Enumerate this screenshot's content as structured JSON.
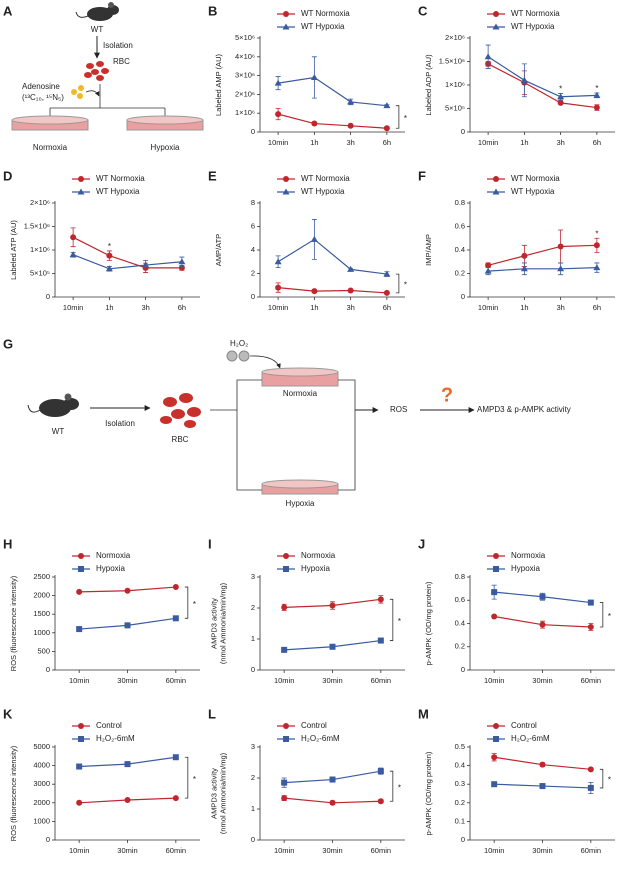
{
  "diagram_a": {
    "panel": "A",
    "mouse": "WT",
    "step": "Isolation",
    "cells": "RBC",
    "tracer": "Adenosine",
    "isotopes": "(¹³C₁₀, ¹⁵N₅)",
    "left": "Normoxia",
    "right": "Hypoxia"
  },
  "diagram_g": {
    "panel": "G",
    "reagent": "H₂O₂",
    "top": "Normoxia",
    "bottom": "Hypoxia",
    "mouse": "WT",
    "step": "Isolation",
    "cells": "RBC",
    "product": "ROS",
    "question": "?",
    "target": "AMPD3 & p-AMPK activity"
  },
  "chart_data": [
    {
      "type": "line",
      "panel": "B",
      "ylabel": "Labeled AMP (AU)",
      "categories": [
        "10min",
        "1h",
        "3h",
        "6h"
      ],
      "ylim": [
        0,
        5000000
      ],
      "yticks": [
        0,
        {
          "value": 1000000,
          "label": "1×10⁶"
        },
        {
          "value": 2000000,
          "label": "2×10⁶"
        },
        {
          "value": 3000000,
          "label": "3×10⁶"
        },
        {
          "value": 4000000,
          "label": "4×10⁶"
        },
        {
          "value": 5000000,
          "label": "5×10⁶"
        }
      ],
      "series": [
        {
          "name": "WT Normoxia",
          "color": "#c0262d",
          "marker": "circle",
          "values": [
            950000,
            450000,
            330000,
            200000
          ],
          "errors": [
            300000,
            50000,
            50000,
            50000
          ]
        },
        {
          "name": "WT Hypoxia",
          "color": "#3a5ba0",
          "marker": "triangle",
          "values": [
            2600000,
            2900000,
            1600000,
            1400000
          ],
          "errors": [
            350000,
            1100000,
            150000,
            50000
          ]
        }
      ],
      "annotations": [
        {
          "text": "*",
          "bracket": true
        }
      ]
    },
    {
      "type": "line",
      "panel": "C",
      "ylabel": "Labeled ADP (AU)",
      "categories": [
        "10min",
        "1h",
        "3h",
        "6h"
      ],
      "ylim": [
        0,
        2000000
      ],
      "yticks": [
        0,
        {
          "value": 500000,
          "label": "5×10⁵"
        },
        {
          "value": 1000000,
          "label": "1×10⁶"
        },
        {
          "value": 1500000,
          "label": "1.5×10⁶"
        },
        {
          "value": 2000000,
          "label": "2×10⁶"
        }
      ],
      "series": [
        {
          "name": "WT Normoxia",
          "color": "#c0262d",
          "marker": "circle",
          "values": [
            1450000,
            1050000,
            620000,
            520000
          ],
          "errors": [
            50000,
            250000,
            20000,
            60000
          ]
        },
        {
          "name": "WT Hypoxia",
          "color": "#3a5ba0",
          "marker": "triangle",
          "values": [
            1600000,
            1100000,
            750000,
            780000
          ],
          "errors": [
            250000,
            350000,
            70000,
            50000
          ]
        }
      ],
      "annotations": [
        {
          "text": "*",
          "x": "3h"
        },
        {
          "text": "*",
          "x": "6h"
        }
      ]
    },
    {
      "type": "line",
      "panel": "D",
      "ylabel": "Labeled ATP (AU)",
      "categories": [
        "10min",
        "1h",
        "3h",
        "6h"
      ],
      "ylim": [
        0,
        2000000
      ],
      "yticks": [
        0,
        {
          "value": 500000,
          "label": "5×10⁵"
        },
        {
          "value": 1000000,
          "label": "1×10⁶"
        },
        {
          "value": 1500000,
          "label": "1.5×10⁶"
        },
        {
          "value": 2000000,
          "label": "2×10⁶"
        }
      ],
      "series": [
        {
          "name": "WT Normoxia",
          "color": "#c0262d",
          "marker": "circle",
          "values": [
            1270000,
            880000,
            620000,
            620000
          ],
          "errors": [
            200000,
            100000,
            100000,
            50000
          ]
        },
        {
          "name": "WT Hypoxia",
          "color": "#3a5ba0",
          "marker": "triangle",
          "values": [
            900000,
            600000,
            680000,
            750000
          ],
          "errors": [
            50000,
            50000,
            100000,
            100000
          ]
        }
      ],
      "annotations": [
        {
          "text": "*",
          "x": "1h"
        }
      ]
    },
    {
      "type": "line",
      "panel": "E",
      "ylabel": "AMP/ATP",
      "categories": [
        "10min",
        "1h",
        "3h",
        "6h"
      ],
      "ylim": [
        0,
        8
      ],
      "yticks": [
        0,
        2,
        4,
        6,
        8
      ],
      "series": [
        {
          "name": "WT Normoxia",
          "color": "#c0262d",
          "marker": "circle",
          "values": [
            0.8,
            0.5,
            0.55,
            0.35
          ],
          "errors": [
            0.4,
            0.1,
            0.1,
            0.05
          ]
        },
        {
          "name": "WT Hypoxia",
          "color": "#3a5ba0",
          "marker": "triangle",
          "values": [
            3.0,
            4.9,
            2.35,
            1.95
          ],
          "errors": [
            0.5,
            1.7,
            0.1,
            0.2
          ]
        }
      ],
      "annotations": [
        {
          "text": "*",
          "bracket": true
        }
      ]
    },
    {
      "type": "line",
      "panel": "F",
      "ylabel": "IMP/AMP",
      "categories": [
        "10min",
        "1h",
        "3h",
        "6h"
      ],
      "ylim": [
        0,
        0.8
      ],
      "yticks": [
        0,
        0.2,
        0.4,
        0.6,
        0.8
      ],
      "series": [
        {
          "name": "WT Normoxia",
          "color": "#c0262d",
          "marker": "circle",
          "values": [
            0.27,
            0.35,
            0.43,
            0.44
          ],
          "errors": [
            0.02,
            0.09,
            0.14,
            0.06
          ]
        },
        {
          "name": "WT Hypoxia",
          "color": "#3a5ba0",
          "marker": "triangle",
          "values": [
            0.22,
            0.24,
            0.24,
            0.25
          ],
          "errors": [
            0.03,
            0.05,
            0.05,
            0.04
          ]
        }
      ],
      "annotations": [
        {
          "text": "*",
          "x": "6h"
        }
      ]
    },
    {
      "type": "line",
      "panel": "H",
      "ylabel": "ROS (fluorescence intensity)",
      "categories": [
        "10min",
        "30min",
        "60min"
      ],
      "ylim": [
        0,
        2500
      ],
      "yticks": [
        0,
        500,
        1000,
        1500,
        2000,
        2500
      ],
      "series": [
        {
          "name": "Normoxia",
          "color": "#c0262d",
          "marker": "circle",
          "values": [
            2100,
            2130,
            2230
          ],
          "errors": [
            20,
            20,
            20
          ]
        },
        {
          "name": "Hypoxia",
          "color": "#3a5ba0",
          "marker": "square",
          "values": [
            1100,
            1200,
            1390
          ],
          "errors": [
            20,
            20,
            20
          ]
        }
      ],
      "annotations": [
        {
          "text": "*",
          "bracket": true
        }
      ]
    },
    {
      "type": "line",
      "panel": "I",
      "ylabel": [
        "AMPD3 activity",
        "(nmol Ammonia/min/mg)"
      ],
      "categories": [
        "10min",
        "30min",
        "60min"
      ],
      "ylim": [
        0,
        3
      ],
      "yticks": [
        0,
        1,
        2,
        3
      ],
      "series": [
        {
          "name": "Normoxia",
          "color": "#c0262d",
          "marker": "circle",
          "values": [
            2.02,
            2.08,
            2.28
          ],
          "errors": [
            0.1,
            0.12,
            0.12
          ]
        },
        {
          "name": "Hypoxia",
          "color": "#3a5ba0",
          "marker": "square",
          "values": [
            0.65,
            0.75,
            0.95
          ],
          "errors": [
            0.03,
            0.03,
            0.03
          ]
        }
      ],
      "annotations": [
        {
          "text": "*",
          "bracket": true
        }
      ]
    },
    {
      "type": "line",
      "panel": "J",
      "ylabel": "p-AMPK (OD/mg protein)",
      "categories": [
        "10min",
        "30min",
        "60min"
      ],
      "ylim": [
        0,
        0.8
      ],
      "yticks": [
        0,
        0.2,
        0.4,
        0.6,
        0.8
      ],
      "series": [
        {
          "name": "Normoxia",
          "color": "#c0262d",
          "marker": "circle",
          "values": [
            0.46,
            0.39,
            0.37
          ],
          "errors": [
            0.01,
            0.03,
            0.03
          ]
        },
        {
          "name": "Hypoxia",
          "color": "#3a5ba0",
          "marker": "square",
          "values": [
            0.67,
            0.63,
            0.58
          ],
          "errors": [
            0.06,
            0.03,
            0.01
          ]
        }
      ],
      "annotations": [
        {
          "text": "*",
          "bracket": true
        }
      ]
    },
    {
      "type": "line",
      "panel": "K",
      "ylabel": "ROS (fluorescence intensity)",
      "categories": [
        "10min",
        "30min",
        "60min"
      ],
      "ylim": [
        0,
        5000
      ],
      "yticks": [
        0,
        1000,
        2000,
        3000,
        4000,
        5000
      ],
      "series": [
        {
          "name": "Control",
          "color": "#c0262d",
          "marker": "circle",
          "values": [
            2000,
            2150,
            2250
          ],
          "errors": [
            40,
            40,
            40
          ]
        },
        {
          "name": "H₂O₂-6mM",
          "color": "#3a5ba0",
          "marker": "square",
          "values": [
            3950,
            4080,
            4450
          ],
          "errors": [
            40,
            60,
            60
          ]
        }
      ],
      "annotations": [
        {
          "text": "*",
          "bracket": true
        }
      ]
    },
    {
      "type": "line",
      "panel": "L",
      "ylabel": [
        "AMPD3 activity",
        "(nmol Ammonia/min/mg)"
      ],
      "categories": [
        "10min",
        "30min",
        "60min"
      ],
      "ylim": [
        0,
        3
      ],
      "yticks": [
        0,
        1,
        2,
        3
      ],
      "series": [
        {
          "name": "Control",
          "color": "#c0262d",
          "marker": "circle",
          "values": [
            1.35,
            1.2,
            1.25
          ],
          "errors": [
            0.08,
            0.06,
            0.05
          ]
        },
        {
          "name": "H₂O₂-6mM",
          "color": "#3a5ba0",
          "marker": "square",
          "values": [
            1.85,
            1.95,
            2.22
          ],
          "errors": [
            0.15,
            0.08,
            0.1
          ]
        }
      ],
      "annotations": [
        {
          "text": "*",
          "bracket": true
        }
      ]
    },
    {
      "type": "line",
      "panel": "M",
      "ylabel": "p-AMPK (OD/mg protein)",
      "categories": [
        "10min",
        "30min",
        "60min"
      ],
      "ylim": [
        0,
        0.5
      ],
      "yticks": [
        0,
        0.1,
        0.2,
        0.3,
        0.4,
        0.5
      ],
      "series": [
        {
          "name": "Control",
          "color": "#c0262d",
          "marker": "circle",
          "values": [
            0.445,
            0.405,
            0.38
          ],
          "errors": [
            0.02,
            0.01,
            0.005
          ]
        },
        {
          "name": "H₂O₂-6mM",
          "color": "#3a5ba0",
          "marker": "square",
          "values": [
            0.3,
            0.29,
            0.28
          ],
          "errors": [
            0.005,
            0.01,
            0.03
          ]
        }
      ],
      "annotations": [
        {
          "text": "*",
          "bracket": true
        }
      ]
    }
  ]
}
